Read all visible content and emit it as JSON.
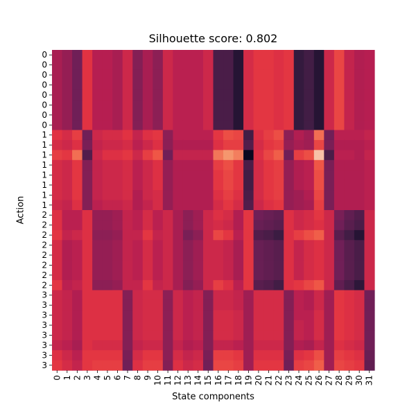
{
  "chart_data": {
    "type": "heatmap",
    "title": "Silhouette score: 0.802",
    "xlabel": "State components",
    "ylabel": "Action",
    "x_ticklabels": [
      "0",
      "1",
      "2",
      "3",
      "4",
      "5",
      "6",
      "7",
      "8",
      "9",
      "10",
      "11",
      "12",
      "13",
      "14",
      "15",
      "16",
      "17",
      "18",
      "19",
      "20",
      "21",
      "22",
      "23",
      "24",
      "25",
      "26",
      "27",
      "28",
      "29",
      "30",
      "31"
    ],
    "y_ticklabels": [
      "0",
      "0",
      "0",
      "0",
      "0",
      "0",
      "0",
      "0",
      "1",
      "1",
      "1",
      "1",
      "1",
      "1",
      "1",
      "1",
      "2",
      "2",
      "2",
      "2",
      "2",
      "2",
      "2",
      "2",
      "3",
      "3",
      "3",
      "3",
      "3",
      "3",
      "3",
      "3"
    ],
    "colormap": "rocket",
    "value_scale": "normalized 0 (dark) to 1 (light), read from cell colours",
    "values": [
      [
        0.42,
        0.38,
        0.3,
        0.55,
        0.45,
        0.45,
        0.42,
        0.5,
        0.34,
        0.42,
        0.36,
        0.5,
        0.46,
        0.46,
        0.46,
        0.5,
        0.2,
        0.2,
        0.1,
        0.52,
        0.56,
        0.56,
        0.54,
        0.56,
        0.14,
        0.18,
        0.1,
        0.5,
        0.6,
        0.48,
        0.44,
        0.45
      ],
      [
        0.42,
        0.38,
        0.3,
        0.55,
        0.45,
        0.45,
        0.42,
        0.5,
        0.34,
        0.42,
        0.36,
        0.5,
        0.46,
        0.46,
        0.46,
        0.5,
        0.2,
        0.2,
        0.1,
        0.52,
        0.56,
        0.56,
        0.54,
        0.56,
        0.14,
        0.18,
        0.1,
        0.5,
        0.6,
        0.48,
        0.44,
        0.45
      ],
      [
        0.42,
        0.38,
        0.3,
        0.55,
        0.45,
        0.45,
        0.42,
        0.5,
        0.34,
        0.42,
        0.36,
        0.5,
        0.46,
        0.46,
        0.46,
        0.5,
        0.2,
        0.2,
        0.1,
        0.52,
        0.56,
        0.56,
        0.54,
        0.56,
        0.14,
        0.18,
        0.1,
        0.5,
        0.6,
        0.48,
        0.44,
        0.45
      ],
      [
        0.42,
        0.38,
        0.3,
        0.55,
        0.45,
        0.45,
        0.42,
        0.5,
        0.34,
        0.42,
        0.36,
        0.5,
        0.46,
        0.46,
        0.46,
        0.5,
        0.2,
        0.2,
        0.1,
        0.52,
        0.56,
        0.56,
        0.54,
        0.56,
        0.14,
        0.18,
        0.1,
        0.5,
        0.6,
        0.48,
        0.44,
        0.45
      ],
      [
        0.42,
        0.38,
        0.3,
        0.55,
        0.45,
        0.45,
        0.42,
        0.5,
        0.34,
        0.42,
        0.36,
        0.5,
        0.46,
        0.46,
        0.46,
        0.5,
        0.2,
        0.2,
        0.1,
        0.52,
        0.56,
        0.56,
        0.54,
        0.56,
        0.14,
        0.18,
        0.1,
        0.5,
        0.6,
        0.48,
        0.44,
        0.45
      ],
      [
        0.42,
        0.38,
        0.3,
        0.55,
        0.45,
        0.45,
        0.42,
        0.5,
        0.34,
        0.42,
        0.36,
        0.5,
        0.46,
        0.46,
        0.46,
        0.5,
        0.2,
        0.2,
        0.1,
        0.52,
        0.56,
        0.56,
        0.54,
        0.56,
        0.14,
        0.18,
        0.1,
        0.5,
        0.6,
        0.48,
        0.44,
        0.45
      ],
      [
        0.42,
        0.38,
        0.3,
        0.55,
        0.45,
        0.45,
        0.42,
        0.5,
        0.34,
        0.42,
        0.36,
        0.5,
        0.46,
        0.46,
        0.46,
        0.5,
        0.2,
        0.2,
        0.1,
        0.52,
        0.56,
        0.56,
        0.54,
        0.56,
        0.14,
        0.18,
        0.1,
        0.5,
        0.6,
        0.48,
        0.44,
        0.45
      ],
      [
        0.42,
        0.38,
        0.3,
        0.55,
        0.45,
        0.45,
        0.42,
        0.5,
        0.34,
        0.42,
        0.36,
        0.5,
        0.46,
        0.46,
        0.46,
        0.5,
        0.2,
        0.2,
        0.1,
        0.52,
        0.56,
        0.56,
        0.54,
        0.56,
        0.14,
        0.18,
        0.1,
        0.5,
        0.6,
        0.48,
        0.44,
        0.45
      ],
      [
        0.55,
        0.52,
        0.58,
        0.3,
        0.5,
        0.52,
        0.52,
        0.55,
        0.48,
        0.54,
        0.56,
        0.36,
        0.46,
        0.46,
        0.46,
        0.46,
        0.56,
        0.62,
        0.6,
        0.18,
        0.54,
        0.58,
        0.62,
        0.36,
        0.44,
        0.4,
        0.7,
        0.3,
        0.46,
        0.46,
        0.46,
        0.48
      ],
      [
        0.52,
        0.5,
        0.54,
        0.32,
        0.48,
        0.5,
        0.5,
        0.52,
        0.46,
        0.5,
        0.54,
        0.36,
        0.44,
        0.44,
        0.44,
        0.44,
        0.54,
        0.58,
        0.58,
        0.22,
        0.52,
        0.56,
        0.58,
        0.38,
        0.42,
        0.4,
        0.6,
        0.32,
        0.44,
        0.44,
        0.44,
        0.46
      ],
      [
        0.58,
        0.56,
        0.7,
        0.22,
        0.5,
        0.54,
        0.54,
        0.56,
        0.5,
        0.58,
        0.64,
        0.3,
        0.48,
        0.48,
        0.48,
        0.48,
        0.72,
        0.8,
        0.74,
        0.02,
        0.54,
        0.6,
        0.66,
        0.3,
        0.58,
        0.62,
        0.9,
        0.2,
        0.46,
        0.46,
        0.44,
        0.48
      ],
      [
        0.52,
        0.5,
        0.56,
        0.34,
        0.48,
        0.5,
        0.5,
        0.52,
        0.46,
        0.5,
        0.54,
        0.38,
        0.44,
        0.44,
        0.44,
        0.44,
        0.58,
        0.62,
        0.56,
        0.2,
        0.52,
        0.56,
        0.58,
        0.38,
        0.44,
        0.46,
        0.64,
        0.32,
        0.44,
        0.44,
        0.44,
        0.46
      ],
      [
        0.52,
        0.5,
        0.56,
        0.34,
        0.48,
        0.5,
        0.5,
        0.52,
        0.46,
        0.5,
        0.54,
        0.38,
        0.44,
        0.44,
        0.44,
        0.44,
        0.56,
        0.6,
        0.56,
        0.18,
        0.52,
        0.56,
        0.58,
        0.38,
        0.44,
        0.46,
        0.62,
        0.32,
        0.44,
        0.44,
        0.44,
        0.46
      ],
      [
        0.52,
        0.5,
        0.56,
        0.34,
        0.48,
        0.5,
        0.5,
        0.52,
        0.46,
        0.5,
        0.54,
        0.38,
        0.44,
        0.44,
        0.44,
        0.44,
        0.56,
        0.6,
        0.56,
        0.18,
        0.52,
        0.56,
        0.58,
        0.38,
        0.44,
        0.46,
        0.62,
        0.32,
        0.44,
        0.44,
        0.44,
        0.46
      ],
      [
        0.52,
        0.5,
        0.56,
        0.34,
        0.48,
        0.5,
        0.5,
        0.52,
        0.44,
        0.5,
        0.52,
        0.38,
        0.44,
        0.44,
        0.44,
        0.44,
        0.54,
        0.58,
        0.54,
        0.2,
        0.52,
        0.56,
        0.58,
        0.38,
        0.4,
        0.44,
        0.6,
        0.32,
        0.44,
        0.44,
        0.44,
        0.46
      ],
      [
        0.5,
        0.48,
        0.54,
        0.34,
        0.46,
        0.48,
        0.48,
        0.5,
        0.44,
        0.48,
        0.52,
        0.38,
        0.44,
        0.44,
        0.44,
        0.44,
        0.52,
        0.56,
        0.52,
        0.22,
        0.5,
        0.54,
        0.56,
        0.38,
        0.4,
        0.42,
        0.58,
        0.32,
        0.44,
        0.44,
        0.44,
        0.46
      ],
      [
        0.54,
        0.46,
        0.46,
        0.54,
        0.38,
        0.38,
        0.4,
        0.48,
        0.46,
        0.52,
        0.46,
        0.5,
        0.42,
        0.36,
        0.4,
        0.5,
        0.54,
        0.52,
        0.44,
        0.56,
        0.3,
        0.28,
        0.26,
        0.54,
        0.5,
        0.52,
        0.56,
        0.5,
        0.32,
        0.26,
        0.22,
        0.5
      ],
      [
        0.54,
        0.46,
        0.46,
        0.54,
        0.38,
        0.38,
        0.4,
        0.48,
        0.46,
        0.52,
        0.46,
        0.5,
        0.42,
        0.36,
        0.4,
        0.5,
        0.52,
        0.5,
        0.44,
        0.56,
        0.28,
        0.26,
        0.24,
        0.54,
        0.5,
        0.52,
        0.54,
        0.5,
        0.3,
        0.24,
        0.2,
        0.5
      ],
      [
        0.56,
        0.48,
        0.5,
        0.54,
        0.36,
        0.36,
        0.38,
        0.48,
        0.48,
        0.56,
        0.48,
        0.5,
        0.42,
        0.32,
        0.36,
        0.5,
        0.6,
        0.56,
        0.46,
        0.56,
        0.22,
        0.2,
        0.16,
        0.54,
        0.58,
        0.62,
        0.66,
        0.5,
        0.24,
        0.18,
        0.1,
        0.5
      ],
      [
        0.52,
        0.44,
        0.46,
        0.54,
        0.38,
        0.38,
        0.4,
        0.48,
        0.46,
        0.52,
        0.46,
        0.5,
        0.42,
        0.36,
        0.4,
        0.5,
        0.5,
        0.48,
        0.42,
        0.56,
        0.28,
        0.26,
        0.24,
        0.54,
        0.48,
        0.52,
        0.54,
        0.5,
        0.3,
        0.24,
        0.2,
        0.5
      ],
      [
        0.52,
        0.44,
        0.46,
        0.54,
        0.38,
        0.38,
        0.4,
        0.48,
        0.46,
        0.52,
        0.46,
        0.5,
        0.42,
        0.36,
        0.4,
        0.5,
        0.5,
        0.48,
        0.42,
        0.56,
        0.28,
        0.26,
        0.24,
        0.54,
        0.48,
        0.52,
        0.54,
        0.5,
        0.3,
        0.24,
        0.2,
        0.5
      ],
      [
        0.52,
        0.44,
        0.46,
        0.54,
        0.38,
        0.38,
        0.4,
        0.48,
        0.46,
        0.52,
        0.46,
        0.5,
        0.42,
        0.36,
        0.4,
        0.5,
        0.5,
        0.48,
        0.42,
        0.56,
        0.28,
        0.26,
        0.24,
        0.54,
        0.48,
        0.52,
        0.54,
        0.5,
        0.3,
        0.24,
        0.2,
        0.5
      ],
      [
        0.52,
        0.44,
        0.46,
        0.54,
        0.38,
        0.38,
        0.4,
        0.48,
        0.46,
        0.52,
        0.46,
        0.5,
        0.42,
        0.36,
        0.4,
        0.5,
        0.5,
        0.48,
        0.42,
        0.56,
        0.28,
        0.26,
        0.24,
        0.54,
        0.48,
        0.52,
        0.54,
        0.5,
        0.3,
        0.24,
        0.2,
        0.5
      ],
      [
        0.56,
        0.46,
        0.48,
        0.54,
        0.36,
        0.36,
        0.38,
        0.48,
        0.48,
        0.56,
        0.48,
        0.5,
        0.42,
        0.34,
        0.38,
        0.5,
        0.58,
        0.54,
        0.46,
        0.56,
        0.24,
        0.22,
        0.18,
        0.54,
        0.56,
        0.6,
        0.64,
        0.5,
        0.26,
        0.2,
        0.12,
        0.5
      ],
      [
        0.5,
        0.48,
        0.44,
        0.54,
        0.54,
        0.54,
        0.54,
        0.34,
        0.5,
        0.52,
        0.52,
        0.36,
        0.5,
        0.46,
        0.48,
        0.34,
        0.5,
        0.5,
        0.48,
        0.4,
        0.52,
        0.52,
        0.52,
        0.34,
        0.46,
        0.44,
        0.5,
        0.4,
        0.56,
        0.54,
        0.52,
        0.3
      ],
      [
        0.5,
        0.48,
        0.44,
        0.54,
        0.54,
        0.54,
        0.54,
        0.34,
        0.5,
        0.52,
        0.52,
        0.36,
        0.5,
        0.46,
        0.48,
        0.34,
        0.5,
        0.5,
        0.48,
        0.4,
        0.52,
        0.52,
        0.52,
        0.34,
        0.46,
        0.44,
        0.5,
        0.4,
        0.56,
        0.54,
        0.52,
        0.3
      ],
      [
        0.5,
        0.48,
        0.44,
        0.54,
        0.54,
        0.54,
        0.54,
        0.34,
        0.5,
        0.52,
        0.52,
        0.36,
        0.5,
        0.46,
        0.48,
        0.34,
        0.52,
        0.52,
        0.5,
        0.4,
        0.52,
        0.52,
        0.52,
        0.34,
        0.46,
        0.46,
        0.52,
        0.4,
        0.56,
        0.54,
        0.52,
        0.3
      ],
      [
        0.5,
        0.48,
        0.44,
        0.54,
        0.54,
        0.54,
        0.54,
        0.34,
        0.5,
        0.52,
        0.52,
        0.36,
        0.5,
        0.46,
        0.48,
        0.34,
        0.52,
        0.52,
        0.5,
        0.4,
        0.52,
        0.52,
        0.52,
        0.34,
        0.48,
        0.46,
        0.52,
        0.4,
        0.56,
        0.54,
        0.52,
        0.3
      ],
      [
        0.5,
        0.48,
        0.44,
        0.54,
        0.54,
        0.54,
        0.54,
        0.34,
        0.5,
        0.52,
        0.52,
        0.36,
        0.5,
        0.46,
        0.48,
        0.34,
        0.52,
        0.52,
        0.5,
        0.4,
        0.52,
        0.52,
        0.52,
        0.34,
        0.48,
        0.46,
        0.52,
        0.4,
        0.56,
        0.54,
        0.52,
        0.3
      ],
      [
        0.48,
        0.46,
        0.42,
        0.54,
        0.52,
        0.52,
        0.52,
        0.34,
        0.48,
        0.5,
        0.5,
        0.36,
        0.48,
        0.44,
        0.46,
        0.34,
        0.48,
        0.48,
        0.46,
        0.4,
        0.5,
        0.5,
        0.5,
        0.34,
        0.44,
        0.42,
        0.48,
        0.4,
        0.54,
        0.52,
        0.5,
        0.3
      ],
      [
        0.54,
        0.5,
        0.46,
        0.56,
        0.56,
        0.56,
        0.56,
        0.32,
        0.52,
        0.56,
        0.56,
        0.36,
        0.52,
        0.48,
        0.5,
        0.32,
        0.58,
        0.58,
        0.56,
        0.4,
        0.54,
        0.54,
        0.54,
        0.32,
        0.54,
        0.56,
        0.62,
        0.4,
        0.58,
        0.56,
        0.54,
        0.28
      ],
      [
        0.56,
        0.52,
        0.48,
        0.56,
        0.58,
        0.58,
        0.58,
        0.3,
        0.54,
        0.58,
        0.58,
        0.34,
        0.54,
        0.5,
        0.52,
        0.3,
        0.6,
        0.6,
        0.58,
        0.4,
        0.56,
        0.56,
        0.56,
        0.3,
        0.58,
        0.6,
        0.66,
        0.4,
        0.6,
        0.58,
        0.56,
        0.26
      ]
    ]
  }
}
